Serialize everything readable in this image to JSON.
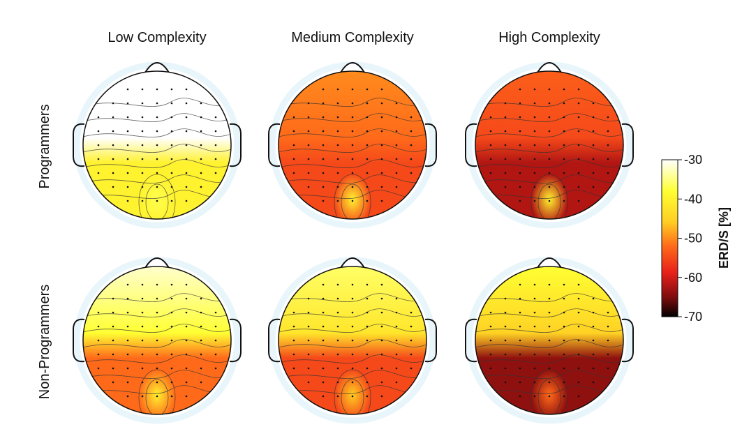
{
  "column_titles": [
    "Low Complexity",
    "Medium Complexity",
    "High Complexity"
  ],
  "row_titles": [
    "Programmers",
    "Non-Programmers"
  ],
  "colorbar": {
    "label": "ERD/S [%]",
    "min": -70,
    "max": -30,
    "ticks": [
      "-30",
      "-40",
      "-50",
      "-60",
      "-70"
    ],
    "tick_values": [
      -30,
      -40,
      -50,
      -60,
      -70
    ],
    "colors": [
      "#ffffff",
      "#ffff33",
      "#ffcc22",
      "#ff6a1a",
      "#e8201a",
      "#7a0d0d",
      "#000000"
    ]
  },
  "panels": [
    {
      "row": 0,
      "col": 0,
      "front": -30,
      "mid": -30,
      "back": -40,
      "hot": -37,
      "ring": "#e8f6fb"
    },
    {
      "row": 0,
      "col": 1,
      "front": -50,
      "mid": -52,
      "back": -55,
      "hot": -40,
      "ring": "#e8f6fb"
    },
    {
      "row": 0,
      "col": 2,
      "front": -53,
      "mid": -55,
      "back": -62,
      "hot": -40,
      "ring": "#e8f6fb"
    },
    {
      "row": 1,
      "col": 0,
      "front": -32,
      "mid": -38,
      "back": -52,
      "hot": -40,
      "ring": "#e8f6fb"
    },
    {
      "row": 1,
      "col": 1,
      "front": -36,
      "mid": -42,
      "back": -55,
      "hot": -46,
      "ring": "#e8f6fb"
    },
    {
      "row": 1,
      "col": 2,
      "front": -38,
      "mid": -45,
      "back": -64,
      "hot": -52,
      "ring": "#e8f6fb"
    }
  ]
}
